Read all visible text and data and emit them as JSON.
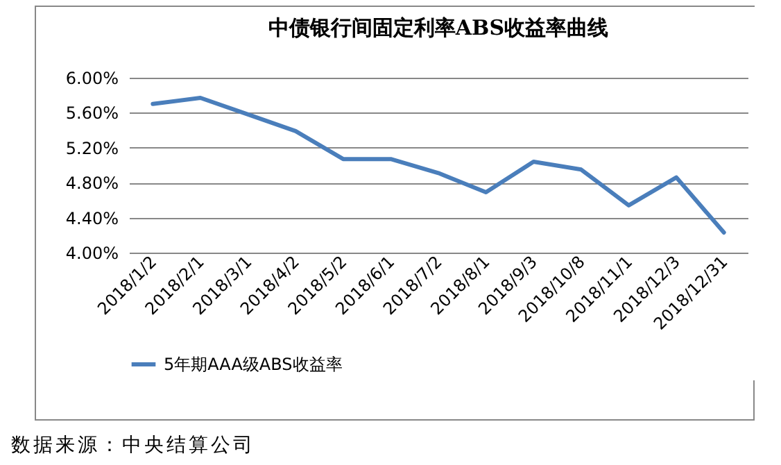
{
  "chart_data": {
    "type": "line",
    "title": "中债银行间固定利率ABS收益率曲线",
    "categories": [
      "2018/1/2",
      "2018/2/1",
      "2018/3/1",
      "2018/4/2",
      "2018/5/2",
      "2018/6/1",
      "2018/7/2",
      "2018/8/1",
      "2018/9/3",
      "2018/10/8",
      "2018/11/1",
      "2018/12/3",
      "2018/12/31"
    ],
    "series": [
      {
        "name": "5年期AAA级ABS收益率",
        "color": "#4a7ebb",
        "values": [
          5.7,
          5.77,
          5.58,
          5.39,
          5.07,
          5.07,
          4.91,
          4.69,
          5.04,
          4.95,
          4.54,
          4.86,
          4.23
        ]
      }
    ],
    "ylim": [
      4.0,
      6.0
    ],
    "yticks": [
      {
        "value": 4.0,
        "label": "4.00%"
      },
      {
        "value": 4.4,
        "label": "4.40%"
      },
      {
        "value": 4.8,
        "label": "4.80%"
      },
      {
        "value": 5.2,
        "label": "5.20%"
      },
      {
        "value": 5.6,
        "label": "5.60%"
      },
      {
        "value": 6.0,
        "label": "6.00%"
      }
    ],
    "grid": "y",
    "legend": "bottom",
    "marker": "none",
    "line_style": "solid",
    "annotations": [
      "数据来源：中央结算公司"
    ]
  }
}
